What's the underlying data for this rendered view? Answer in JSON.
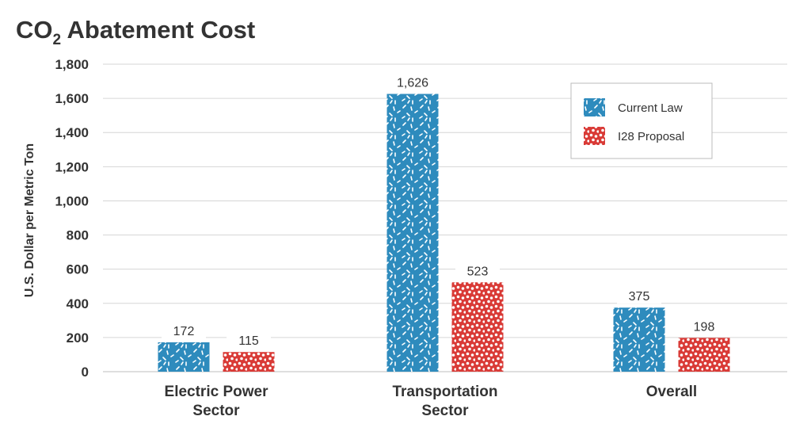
{
  "chart_data": {
    "type": "bar",
    "title_main": "CO",
    "title_sub": "2",
    "title_rest": " Abatement Cost",
    "ylabel": "U.S. Dollar per Metric Ton",
    "xlabel": "",
    "ylim": [
      0,
      1800
    ],
    "yticks": [
      "0",
      "200",
      "400",
      "600",
      "800",
      "1,000",
      "1,200",
      "1,400",
      "1,600",
      "1,800"
    ],
    "ytick_values": [
      0,
      200,
      400,
      600,
      800,
      1000,
      1200,
      1400,
      1600,
      1800
    ],
    "grid": true,
    "legend_position": "top-right",
    "categories": [
      {
        "line1": "Electric Power",
        "line2": "Sector"
      },
      {
        "line1": "Transportation",
        "line2": "Sector"
      },
      {
        "line1": "Overall",
        "line2": ""
      }
    ],
    "series": [
      {
        "name": "Current Law",
        "color": "#2e8bbd",
        "pattern": "dashes",
        "values": [
          172,
          1626,
          375
        ],
        "labels": [
          "172",
          "1,626",
          "375"
        ]
      },
      {
        "name": "I28 Proposal",
        "color": "#d93a36",
        "pattern": "dots",
        "values": [
          115,
          523,
          198
        ],
        "labels": [
          "115",
          "523",
          "198"
        ]
      }
    ]
  }
}
